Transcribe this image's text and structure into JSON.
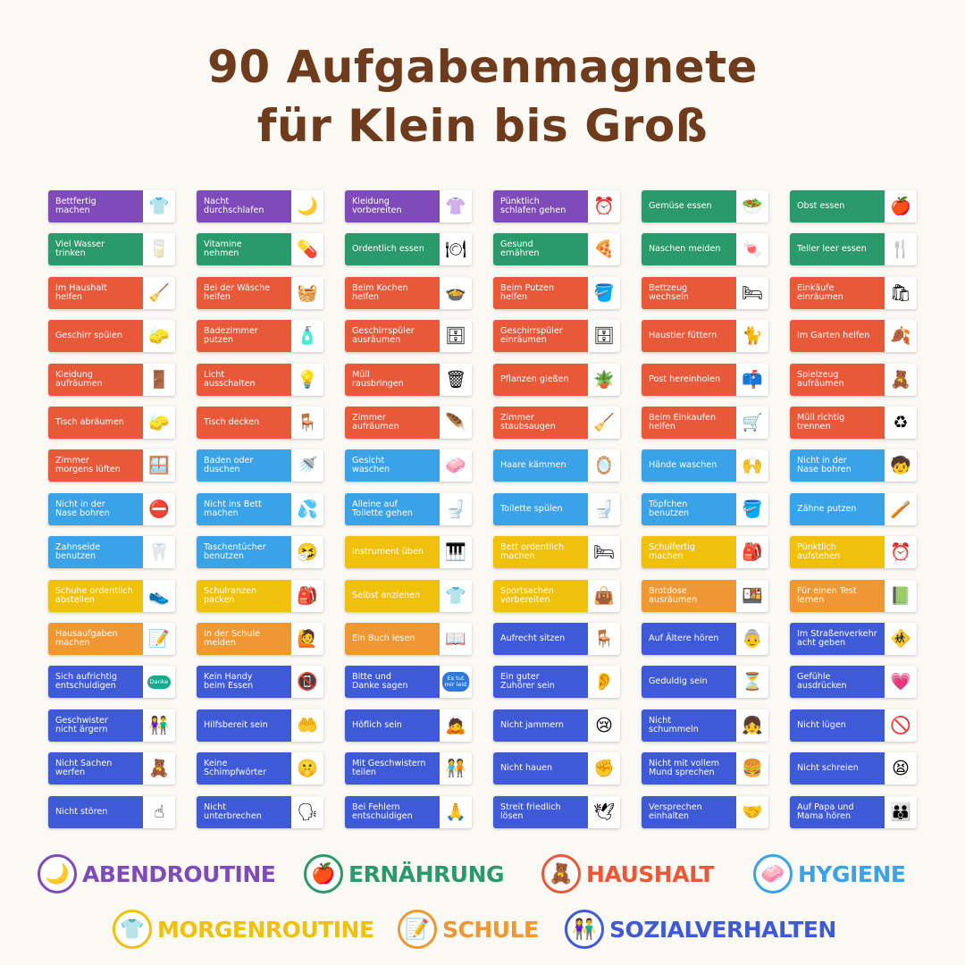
{
  "title": {
    "line1": "90 Aufgabenmagnete",
    "line2": "für Klein bis Groß"
  },
  "colors": {
    "abendroutine": "#7e4bb9",
    "ernaehrung": "#2a9a6a",
    "haushalt": "#e8593a",
    "hygiene": "#3aa2e6",
    "morgenroutine": "#f0c10c",
    "schule": "#ef9732",
    "sozialverhalten": "#3f5ad6"
  },
  "rows": [
    [
      {
        "label": "Bettfertig\nmachen",
        "cat": "abendroutine",
        "icon": "pajama-icon",
        "glyph": "👕"
      },
      {
        "label": "Nacht\ndurchschlafen",
        "cat": "abendroutine",
        "icon": "moon-icon",
        "glyph": "🌙"
      },
      {
        "label": "Kleidung\nvorbereiten",
        "cat": "abendroutine",
        "icon": "clothes-stack-icon",
        "glyph": "👚"
      },
      {
        "label": "Pünktlich\nschlafen gehen",
        "cat": "abendroutine",
        "icon": "alarm-clock-icon",
        "glyph": "⏰"
      },
      {
        "label": "Gemüse essen",
        "cat": "ernaehrung",
        "icon": "vegetables-icon",
        "glyph": "🥗"
      },
      {
        "label": "Obst essen",
        "cat": "ernaehrung",
        "icon": "fruit-bowl-icon",
        "glyph": "🍎"
      }
    ],
    [
      {
        "label": "Viel Wasser\ntrinken",
        "cat": "ernaehrung",
        "icon": "water-glass-icon",
        "glyph": "🥛"
      },
      {
        "label": "Vitamine\nnehmen",
        "cat": "ernaehrung",
        "icon": "vitamins-icon",
        "glyph": "💊"
      },
      {
        "label": "Ordentlich essen",
        "cat": "ernaehrung",
        "icon": "plate-icon",
        "glyph": "🍽"
      },
      {
        "label": "Gesund\nernähren",
        "cat": "ernaehrung",
        "icon": "pizza-icon",
        "glyph": "🍕"
      },
      {
        "label": "Naschen meiden",
        "cat": "ernaehrung",
        "icon": "no-candy-icon",
        "glyph": "🍬"
      },
      {
        "label": "Teller leer essen",
        "cat": "ernaehrung",
        "icon": "cutlery-plate-icon",
        "glyph": "🍴"
      }
    ],
    [
      {
        "label": "Im Haushalt\nhelfen",
        "cat": "haushalt",
        "icon": "mop-bucket-icon",
        "glyph": "🧹"
      },
      {
        "label": "Bei der Wäsche\nhelfen",
        "cat": "haushalt",
        "icon": "laundry-basket-icon",
        "glyph": "🧺"
      },
      {
        "label": "Beim Kochen\nhelfen",
        "cat": "haushalt",
        "icon": "cooking-pot-icon",
        "glyph": "🍲"
      },
      {
        "label": "Beim Putzen\nhelfen",
        "cat": "haushalt",
        "icon": "cleaning-bucket-icon",
        "glyph": "🪣"
      },
      {
        "label": "Bettzeug\nwechseln",
        "cat": "haushalt",
        "icon": "bedding-icon",
        "glyph": "🛏"
      },
      {
        "label": "Einkäufe\neinräumen",
        "cat": "haushalt",
        "icon": "grocery-bag-icon",
        "glyph": "🛍"
      }
    ],
    [
      {
        "label": "Geschirr spülen",
        "cat": "haushalt",
        "icon": "dish-washing-icon",
        "glyph": "🧽"
      },
      {
        "label": "Badezimmer\nputzen",
        "cat": "haushalt",
        "icon": "cleaning-spray-icon",
        "glyph": "🧴"
      },
      {
        "label": "Geschirrspüler\nausräumen",
        "cat": "haushalt",
        "icon": "dishwasher-icon",
        "glyph": "🗄"
      },
      {
        "label": "Geschirrspüler\neinräumen",
        "cat": "haushalt",
        "icon": "dishwasher-icon",
        "glyph": "🗄"
      },
      {
        "label": "Haustier füttern",
        "cat": "haushalt",
        "icon": "cat-icon",
        "glyph": "🐈"
      },
      {
        "label": "Im Garten helfen",
        "cat": "haushalt",
        "icon": "rake-icon",
        "glyph": "🍂"
      }
    ],
    [
      {
        "label": "Kleidung\naufräumen",
        "cat": "haushalt",
        "icon": "wardrobe-icon",
        "glyph": "🚪"
      },
      {
        "label": "Licht\nausschalten",
        "cat": "haushalt",
        "icon": "light-switch-icon",
        "glyph": "💡"
      },
      {
        "label": "Müll\nrausbringen",
        "cat": "haushalt",
        "icon": "trash-bag-icon",
        "glyph": "🗑"
      },
      {
        "label": "Pflanzen gießen",
        "cat": "haushalt",
        "icon": "watering-can-icon",
        "glyph": "🪴"
      },
      {
        "label": "Post hereinholen",
        "cat": "haushalt",
        "icon": "mailbox-icon",
        "glyph": "📫"
      },
      {
        "label": "Spielzeug\naufräumen",
        "cat": "haushalt",
        "icon": "toys-icon",
        "glyph": "🧸"
      }
    ],
    [
      {
        "label": "Tisch abräumen",
        "cat": "haushalt",
        "icon": "sponge-icon",
        "glyph": "🧽"
      },
      {
        "label": "Tisch decken",
        "cat": "haushalt",
        "icon": "table-icon",
        "glyph": "🪑"
      },
      {
        "label": "Zimmer\naufräumen",
        "cat": "haushalt",
        "icon": "duster-icon",
        "glyph": "🪶"
      },
      {
        "label": "Zimmer\nstaubsaugen",
        "cat": "haushalt",
        "icon": "vacuum-icon",
        "glyph": "🧹"
      },
      {
        "label": "Beim Einkaufen\nhelfen",
        "cat": "haushalt",
        "icon": "shopping-basket-icon",
        "glyph": "🛒"
      },
      {
        "label": "Müll richtig\ntrennen",
        "cat": "haushalt",
        "icon": "recycling-bin-icon",
        "glyph": "♻"
      }
    ],
    [
      {
        "label": "Zimmer\nmorgens lüften",
        "cat": "haushalt",
        "icon": "window-icon",
        "glyph": "🪟"
      },
      {
        "label": "Baden oder\nduschen",
        "cat": "hygiene",
        "icon": "shower-icon",
        "glyph": "🚿"
      },
      {
        "label": "Gesicht\nwaschen",
        "cat": "hygiene",
        "icon": "face-wash-icon",
        "glyph": "🧼"
      },
      {
        "label": "Haare kämmen",
        "cat": "hygiene",
        "icon": "hand-mirror-icon",
        "glyph": "🪞"
      },
      {
        "label": "Hände waschen",
        "cat": "hygiene",
        "icon": "hands-icon",
        "glyph": "🙌"
      },
      {
        "label": "Nicht in der\nNase bohren",
        "cat": "hygiene",
        "icon": "child-nose-icon",
        "glyph": "🧒"
      }
    ],
    [
      {
        "label": "Nicht in der\nNase bohren",
        "cat": "hygiene",
        "icon": "no-nose-picking-icon",
        "glyph": "⛔"
      },
      {
        "label": "Nicht ins Bett\nmachen",
        "cat": "hygiene",
        "icon": "wet-bed-icon",
        "glyph": "💦"
      },
      {
        "label": "Alleine auf\nToilette gehen",
        "cat": "hygiene",
        "icon": "toilet-icon",
        "glyph": "🚽"
      },
      {
        "label": "Toilette spülen",
        "cat": "hygiene",
        "icon": "flush-icon",
        "glyph": "🚽"
      },
      {
        "label": "Töpfchen\nbenutzen",
        "cat": "hygiene",
        "icon": "potty-icon",
        "glyph": "🪣"
      },
      {
        "label": "Zähne putzen",
        "cat": "hygiene",
        "icon": "toothbrush-icon",
        "glyph": "🪥"
      }
    ],
    [
      {
        "label": "Zahnseide\nbenutzen",
        "cat": "hygiene",
        "icon": "dental-floss-icon",
        "glyph": "🦷"
      },
      {
        "label": "Taschentücher\nbenutzen",
        "cat": "hygiene",
        "icon": "tissue-box-icon",
        "glyph": "🤧"
      },
      {
        "label": "Instrument üben",
        "cat": "morgenroutine",
        "icon": "piano-icon",
        "glyph": "🎹"
      },
      {
        "label": "Bett ordentlich\nmachen",
        "cat": "morgenroutine",
        "icon": "bed-icon",
        "glyph": "🛏"
      },
      {
        "label": "Schulfertig\nmachen",
        "cat": "morgenroutine",
        "icon": "backpack-icon",
        "glyph": "🎒"
      },
      {
        "label": "Pünktlich\naufstehen",
        "cat": "morgenroutine",
        "icon": "clock-icon",
        "glyph": "⏰"
      }
    ],
    [
      {
        "label": "Schuhe ordentlich\nabstellen",
        "cat": "morgenroutine",
        "icon": "shoes-icon",
        "glyph": "👟"
      },
      {
        "label": "Schulranzen\npacken",
        "cat": "morgenroutine",
        "icon": "school-bag-icon",
        "glyph": "🎒"
      },
      {
        "label": "Selbst anziehen",
        "cat": "morgenroutine",
        "icon": "outfit-icon",
        "glyph": "👕"
      },
      {
        "label": "Sportsachen\nvorbereiten",
        "cat": "morgenroutine",
        "icon": "sports-bag-icon",
        "glyph": "👜"
      },
      {
        "label": "Brotdose\nausräumen",
        "cat": "schule",
        "icon": "lunchbox-icon",
        "glyph": "🍱"
      },
      {
        "label": "Für einen Test\nlernen",
        "cat": "schule",
        "icon": "study-book-icon",
        "glyph": "📗"
      }
    ],
    [
      {
        "label": "Hausaufgaben\nmachen",
        "cat": "schule",
        "icon": "homework-icon",
        "glyph": "📝"
      },
      {
        "label": "In der Schule\nmelden",
        "cat": "schule",
        "icon": "raised-hand-icon",
        "glyph": "🙋"
      },
      {
        "label": "Ein Buch lesen",
        "cat": "schule",
        "icon": "book-icon",
        "glyph": "📖"
      },
      {
        "label": "Aufrecht sitzen",
        "cat": "sozialverhalten",
        "icon": "desk-icon",
        "glyph": "🪑"
      },
      {
        "label": "Auf Ältere hören",
        "cat": "sozialverhalten",
        "icon": "grandparents-icon",
        "glyph": "👵"
      },
      {
        "label": "Im Straßenverkehr\nacht geben",
        "cat": "sozialverhalten",
        "icon": "traffic-icon",
        "glyph": "🚸"
      }
    ],
    [
      {
        "label": "Sich aufrichtig\nentschuldigen",
        "cat": "sozialverhalten",
        "icon": "speech-bubble-icon",
        "glyph": "Danke",
        "text": true
      },
      {
        "label": "Kein Handy\nbeim Essen",
        "cat": "sozialverhalten",
        "icon": "no-phone-icon",
        "glyph": "📵"
      },
      {
        "label": "Bitte und\nDanke sagen",
        "cat": "sozialverhalten",
        "icon": "speech-bubble-icon",
        "glyph": "Es tut\nmir leid",
        "text": true
      },
      {
        "label": "Ein guter\nZuhörer sein",
        "cat": "sozialverhalten",
        "icon": "ear-icon",
        "glyph": "👂"
      },
      {
        "label": "Geduldig sein",
        "cat": "sozialverhalten",
        "icon": "hourglass-icon",
        "glyph": "⏳"
      },
      {
        "label": "Gefühle\nausdrücken",
        "cat": "sozialverhalten",
        "icon": "heart-icon",
        "glyph": "💗"
      }
    ],
    [
      {
        "label": "Geschwister\nnicht ärgern",
        "cat": "sozialverhalten",
        "icon": "siblings-icon",
        "glyph": "👫"
      },
      {
        "label": "Hilfsbereit sein",
        "cat": "sozialverhalten",
        "icon": "helping-hands-icon",
        "glyph": "🤲"
      },
      {
        "label": "Höflich sein",
        "cat": "sozialverhalten",
        "icon": "polite-child-icon",
        "glyph": "🙇"
      },
      {
        "label": "Nicht jammern",
        "cat": "sozialverhalten",
        "icon": "crying-face-icon",
        "glyph": "😢"
      },
      {
        "label": "Nicht\nschummeln",
        "cat": "sozialverhalten",
        "icon": "kids-icon",
        "glyph": "👧"
      },
      {
        "label": "Nicht lügen",
        "cat": "sozialverhalten",
        "icon": "prohibited-icon",
        "glyph": "🚫"
      }
    ],
    [
      {
        "label": "Nicht Sachen\nwerfen",
        "cat": "sozialverhalten",
        "icon": "throwing-toy-icon",
        "glyph": "🧸"
      },
      {
        "label": "Keine\nSchimpfwörter",
        "cat": "sozialverhalten",
        "icon": "shushing-child-icon",
        "glyph": "🤫"
      },
      {
        "label": "Mit Geschwistern\nteilen",
        "cat": "sozialverhalten",
        "icon": "sharing-kids-icon",
        "glyph": "🧑‍🤝‍🧑"
      },
      {
        "label": "Nicht hauen",
        "cat": "sozialverhalten",
        "icon": "fist-icon",
        "glyph": "✊"
      },
      {
        "label": "Nicht mit vollem\nMund sprechen",
        "cat": "sozialverhalten",
        "icon": "eating-child-icon",
        "glyph": "🍔"
      },
      {
        "label": "Nicht schreien",
        "cat": "sozialverhalten",
        "icon": "shouting-face-icon",
        "glyph": "😫"
      }
    ],
    [
      {
        "label": "Nicht stören",
        "cat": "sozialverhalten",
        "icon": "quiet-finger-icon",
        "glyph": "☝"
      },
      {
        "label": "Nicht\nunterbrechen",
        "cat": "sozialverhalten",
        "icon": "talking-kids-icon",
        "glyph": "🗣"
      },
      {
        "label": "Bei Fehlern\nentschuldigen",
        "cat": "sozialverhalten",
        "icon": "apologizing-child-icon",
        "glyph": "🙏"
      },
      {
        "label": "Streit friedlich\nlösen",
        "cat": "sozialverhalten",
        "icon": "dove-icon",
        "glyph": "🕊"
      },
      {
        "label": "Versprechen\neinhalten",
        "cat": "sozialverhalten",
        "icon": "promise-kids-icon",
        "glyph": "🤝"
      },
      {
        "label": "Auf Papa und\nMama hören",
        "cat": "sozialverhalten",
        "icon": "parents-icon",
        "glyph": "👪"
      }
    ]
  ],
  "legend": [
    {
      "label": "ABENDROUTINE",
      "cat": "abendroutine",
      "icon": "moon-icon",
      "glyph": "🌙"
    },
    {
      "label": "ERNÄHRUNG",
      "cat": "ernaehrung",
      "icon": "fruit-bowl-icon",
      "glyph": "🍎"
    },
    {
      "label": "HAUSHALT",
      "cat": "haushalt",
      "icon": "toys-icon",
      "glyph": "🧸"
    },
    {
      "label": "HYGIENE",
      "cat": "hygiene",
      "icon": "face-wash-icon",
      "glyph": "🧼"
    },
    {
      "label": "MORGENROUTINE",
      "cat": "morgenroutine",
      "icon": "outfit-icon",
      "glyph": "👕"
    },
    {
      "label": "SCHULE",
      "cat": "schule",
      "icon": "homework-icon",
      "glyph": "📝"
    },
    {
      "label": "SOZIALVERHALTEN",
      "cat": "sozialverhalten",
      "icon": "kids-icon",
      "glyph": "👫"
    }
  ]
}
